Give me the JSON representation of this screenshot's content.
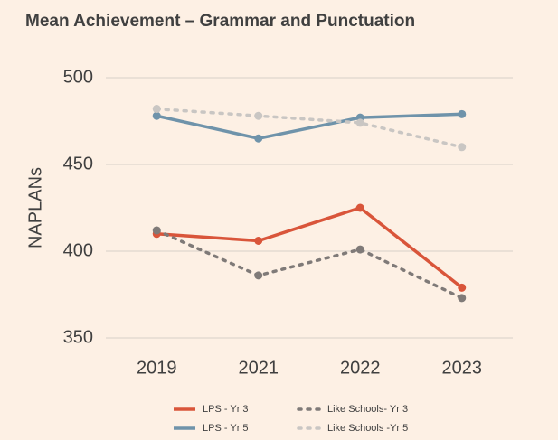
{
  "chart_data": {
    "type": "line",
    "title": "Mean Achievement – Grammar and Punctuation",
    "y_label": "NAPLANs",
    "categories": [
      "2019",
      "2021",
      "2022",
      "2023"
    ],
    "series": [
      {
        "name": "LPS - Yr 3",
        "color": "#d9553a",
        "dashed": false,
        "values": [
          410,
          406,
          425,
          379
        ]
      },
      {
        "name": "Like Schools- Yr 3",
        "color": "#7f7a78",
        "dashed": true,
        "values": [
          412,
          386,
          401,
          373
        ]
      },
      {
        "name": "LPS - Yr 5",
        "color": "#6f93aa",
        "dashed": false,
        "values": [
          478,
          465,
          477,
          479
        ]
      },
      {
        "name": "Like Schools -Yr 5",
        "color": "#c9c6c3",
        "dashed": true,
        "values": [
          482,
          478,
          474,
          460
        ]
      }
    ],
    "ylim": [
      350,
      500
    ],
    "yticks": [
      350,
      400,
      450,
      500
    ],
    "grid": true,
    "legend": "bottom"
  }
}
